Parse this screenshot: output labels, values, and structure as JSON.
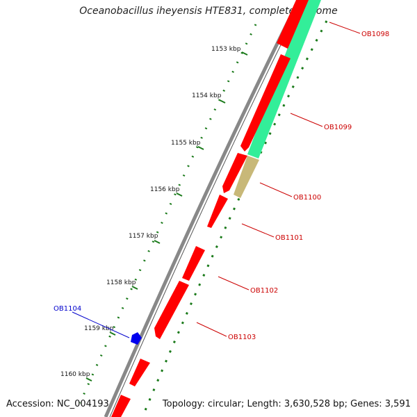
{
  "title": "Oceanobacillus iheyensis HTE831, complete genome",
  "footer": {
    "accession": "Accession: NC_004193",
    "summary": "Topology: circular; Length: 3,630,528 bp; Genes: 3,591"
  },
  "ticks": [
    {
      "label": "1153 kbp"
    },
    {
      "label": "1154 kbp"
    },
    {
      "label": "1155 kbp"
    },
    {
      "label": "1156 kbp"
    },
    {
      "label": "1157 kbp"
    },
    {
      "label": "1158 kbp"
    },
    {
      "label": "1159 kbp"
    },
    {
      "label": "1160 kbp"
    }
  ],
  "genes": [
    {
      "label": "OB1098"
    },
    {
      "label": "OB1099"
    },
    {
      "label": "OB1100"
    },
    {
      "label": "OB1101"
    },
    {
      "label": "OB1102"
    },
    {
      "label": "OB1103"
    },
    {
      "label": "OB1104"
    }
  ],
  "colors": {
    "backbone": "#888888",
    "cds": "#ff0000",
    "rrna": "#33ee99",
    "misc": "#c8b878",
    "highlight": "#0000ee",
    "gc_dots": "#1a7a1a"
  }
}
